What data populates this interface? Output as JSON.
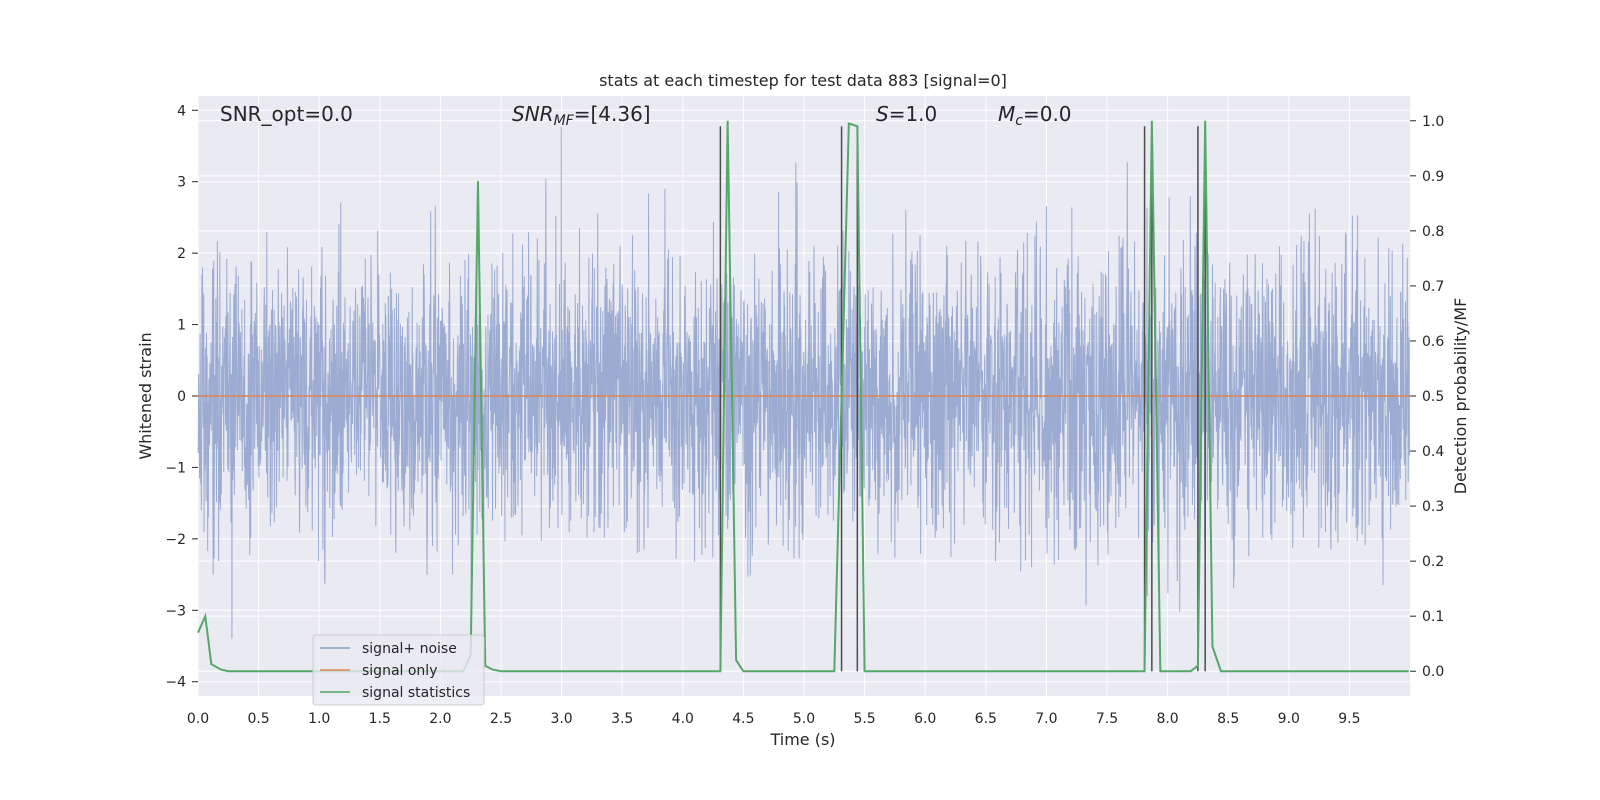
{
  "chart_data": {
    "type": "line",
    "title": "stats at each timestep for test data 883 [signal=0]",
    "xlabel": "Time (s)",
    "ylabel": "Whitened strain",
    "y2label": "Detection probability/MF",
    "xlim": [
      0.0,
      10.0
    ],
    "ylim": [
      -4.2,
      4.2
    ],
    "y2lim": [
      -0.045,
      1.045
    ],
    "grid": true,
    "legend_position": "lower-left",
    "x_ticks": [
      "0.0",
      "0.5",
      "1.0",
      "1.5",
      "2.0",
      "2.5",
      "3.0",
      "3.5",
      "4.0",
      "4.5",
      "5.0",
      "5.5",
      "6.0",
      "6.5",
      "7.0",
      "7.5",
      "8.0",
      "8.5",
      "9.0",
      "9.5"
    ],
    "y_ticks": [
      "4",
      "3",
      "2",
      "1",
      "0",
      "−1",
      "−2",
      "−3",
      "−4"
    ],
    "y2_ticks": [
      "1.0",
      "0.9",
      "0.8",
      "0.7",
      "0.6",
      "0.5",
      "0.4",
      "0.3",
      "0.2",
      "0.1",
      "0.0"
    ],
    "annotations": {
      "snr_opt": "SNR_opt=0.0",
      "snr_mf_var": "SNR",
      "snr_mf_sub": "MF",
      "snr_mf_val": "=[4.36]",
      "s_var": "S",
      "s_val": "=1.0",
      "mc_var": "M",
      "mc_sub": "c",
      "mc_val": "=0.0"
    },
    "series": [
      {
        "name": "signal+ noise",
        "color": "#8da0cb",
        "axis": "left",
        "description_of_shape": "dense whitened noise",
        "sigma": 1.0,
        "sample_rate_hz": 400
      },
      {
        "name": "signal only",
        "color": "#dd8452",
        "axis": "left",
        "x": [
          0.0,
          10.0
        ],
        "y": [
          0.0,
          0.0
        ]
      },
      {
        "name": "signal statistics",
        "color": "#55a868",
        "axis": "right",
        "x": [
          0.0,
          0.06,
          0.11,
          0.19,
          0.25,
          0.31,
          2.19,
          2.25,
          2.31,
          2.37,
          2.43,
          2.5,
          4.31,
          4.37,
          4.44,
          4.5,
          5.25,
          5.37,
          5.44,
          5.5,
          7.81,
          7.87,
          7.94,
          8.19,
          8.25,
          8.31,
          8.37,
          8.44,
          9.99
        ],
        "y": [
          0.07,
          0.1,
          0.013,
          0.003,
          0.0,
          0.0,
          0.0,
          0.03,
          0.89,
          0.01,
          0.003,
          0.0,
          0.0,
          1.0,
          0.02,
          0.0,
          0.0,
          0.995,
          0.99,
          0.0,
          0.0,
          1.0,
          0.0,
          0.0,
          0.01,
          1.0,
          0.045,
          0.0,
          0.0
        ]
      }
    ],
    "vertical_markers": {
      "color": "#4c4c4c",
      "x": [
        4.31,
        5.31,
        5.44,
        7.81,
        7.87,
        8.25,
        8.31
      ],
      "y2_top": 0.99
    },
    "legend": [
      "signal+ noise",
      "signal only",
      "signal statistics"
    ]
  }
}
